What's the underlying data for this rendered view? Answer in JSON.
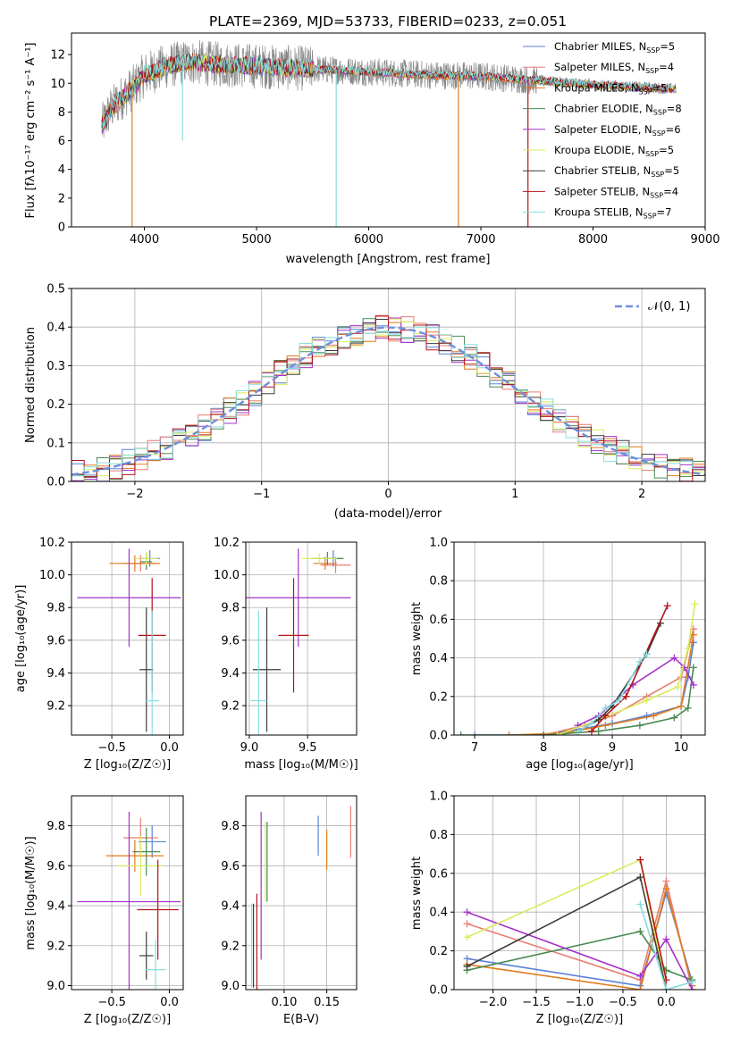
{
  "title": "PLATE=2369, MJD=53733, FIBERID=0233, z=0.051",
  "colors": {
    "chabrier_miles": "#5b82d6",
    "salpeter_miles": "#e87d72",
    "kroupa_miles": "#e07b1d",
    "chabrier_elodie": "#4a8a55",
    "salpeter_elodie": "#a532c8",
    "kroupa_elodie": "#d9ee5a",
    "chabrier_stelib": "#3c3c3c",
    "salpeter_stelib": "#b3151b",
    "kroupa_stelib": "#86dede",
    "data": "#888888"
  },
  "chart_data": [
    {
      "type": "line",
      "panel": "spectrum",
      "title": "PLATE=2369, MJD=53733, FIBERID=0233, z=0.051",
      "xlabel": "wavelength [Angstrom, rest frame]",
      "ylabel": "Flux [fλ10⁻¹⁷ erg cm⁻² s⁻¹ A⁻¹]",
      "xlim": [
        3350,
        9000
      ],
      "ylim": [
        0,
        13.5
      ],
      "xticks": [
        "4000",
        "5000",
        "6000",
        "7000",
        "8000",
        "9000"
      ],
      "yticks": [
        "0",
        "2",
        "4",
        "6",
        "8",
        "10",
        "12"
      ],
      "legend_position": "right",
      "legend": [
        {
          "label": "Chabrier MILES, N",
          "sub": "SSP",
          "val": "=5"
        },
        {
          "label": "Salpeter MILES, N",
          "sub": "SSP",
          "val": "=4"
        },
        {
          "label": "Kroupa MILES, N",
          "sub": "SSP",
          "val": "=5"
        },
        {
          "label": "Chabrier ELODIE, N",
          "sub": "SSP",
          "val": "=8"
        },
        {
          "label": "Salpeter ELODIE, N",
          "sub": "SSP",
          "val": "=6"
        },
        {
          "label": "Kroupa ELODIE, N",
          "sub": "SSP",
          "val": "=5"
        },
        {
          "label": "Chabrier STELIB, N",
          "sub": "SSP",
          "val": "=5"
        },
        {
          "label": "Salpeter STELIB, N",
          "sub": "SSP",
          "val": "=4"
        },
        {
          "label": "Kroupa STELIB, N",
          "sub": "SSP",
          "val": "=7"
        }
      ],
      "data_range": [
        3620,
        8740
      ],
      "continuum": [
        [
          3620,
          7.0
        ],
        [
          3700,
          8.2
        ],
        [
          3800,
          9.0
        ],
        [
          3900,
          9.7
        ],
        [
          4000,
          10.6
        ],
        [
          4200,
          11.2
        ],
        [
          4400,
          11.5
        ],
        [
          4700,
          11.3
        ],
        [
          5000,
          11.2
        ],
        [
          5500,
          11.0
        ],
        [
          6000,
          10.8
        ],
        [
          6500,
          10.6
        ],
        [
          7000,
          10.5
        ],
        [
          7500,
          10.2
        ],
        [
          8000,
          9.9
        ],
        [
          8500,
          9.7
        ],
        [
          8740,
          9.6
        ]
      ],
      "spikes_down": [
        [
          3890,
          0
        ],
        [
          4340,
          6.0
        ],
        [
          5710,
          0
        ],
        [
          6800,
          0
        ],
        [
          7420,
          0
        ]
      ]
    },
    {
      "type": "histogram",
      "panel": "residuals",
      "xlabel": "(data-model)/error",
      "ylabel": "Normed distribution",
      "xlim": [
        -2.5,
        2.5
      ],
      "ylim": [
        0,
        0.5
      ],
      "xticks": [
        "−2",
        "−1",
        "0",
        "1",
        "2"
      ],
      "yticks": [
        "0.0",
        "0.1",
        "0.2",
        "0.3",
        "0.4",
        "0.5"
      ],
      "legend": "𝒩(0, 1)",
      "legend_position": "top-right",
      "bin_width": 0.1
    },
    {
      "type": "scatter",
      "panel": "age_vs_Z",
      "xlabel": "Z [log₁₀(Z/Z☉)]",
      "ylabel": "age  [log₁₀(age/yr)]",
      "xlim": [
        -0.85,
        0.12
      ],
      "ylim": [
        9.02,
        10.2
      ],
      "xticks": [
        "−0.5",
        "0.0"
      ],
      "yticks": [
        "9.2",
        "9.4",
        "9.6",
        "9.8",
        "10.0",
        "10.2"
      ],
      "points": [
        {
          "model": "chabrier_miles",
          "x": -0.17,
          "y": 10.1,
          "xerr": 0.09,
          "yerr": 0.05
        },
        {
          "model": "salpeter_miles",
          "x": -0.25,
          "y": 10.07,
          "xerr": 0.15,
          "yerr": 0.05
        },
        {
          "model": "kroupa_miles",
          "x": -0.3,
          "y": 10.07,
          "xerr": 0.22,
          "yerr": 0.05
        },
        {
          "model": "chabrier_elodie",
          "x": -0.2,
          "y": 10.08,
          "xerr": 0.05,
          "yerr": 0.05
        },
        {
          "model": "salpeter_elodie",
          "x": -0.35,
          "y": 9.86,
          "xerr": 0.45,
          "yerr": 0.3
        },
        {
          "model": "kroupa_elodie",
          "x": -0.2,
          "y": 10.1,
          "xerr": 0.1,
          "yerr": 0.04
        },
        {
          "model": "chabrier_stelib",
          "x": -0.2,
          "y": 9.42,
          "xerr": 0.06,
          "yerr": 0.38
        },
        {
          "model": "salpeter_stelib",
          "x": -0.15,
          "y": 9.63,
          "xerr": 0.12,
          "yerr": 0.35
        },
        {
          "model": "kroupa_stelib",
          "x": -0.15,
          "y": 9.23,
          "xerr": 0.06,
          "yerr": 0.55
        }
      ]
    },
    {
      "type": "scatter",
      "panel": "age_vs_mass",
      "xlabel": "mass [log₁₀(M/M☉)]",
      "yticks": [
        "9.2",
        "9.4",
        "9.6",
        "9.8",
        "10.0",
        "10.2"
      ],
      "xticks": [
        "9.0",
        "9.5"
      ],
      "xlim": [
        8.97,
        9.92
      ],
      "ylim": [
        9.02,
        10.2
      ],
      "points": [
        {
          "model": "chabrier_miles",
          "x": 9.72,
          "y": 10.1,
          "xerr": 0.08,
          "yerr": 0.05
        },
        {
          "model": "salpeter_miles",
          "x": 9.74,
          "y": 10.06,
          "xerr": 0.13,
          "yerr": 0.05
        },
        {
          "model": "kroupa_miles",
          "x": 9.65,
          "y": 10.07,
          "xerr": 0.1,
          "yerr": 0.04
        },
        {
          "model": "chabrier_elodie",
          "x": 9.67,
          "y": 10.1,
          "xerr": 0.14,
          "yerr": 0.04
        },
        {
          "model": "salpeter_elodie",
          "x": 9.42,
          "y": 9.86,
          "xerr": 0.45,
          "yerr": 0.3
        },
        {
          "model": "kroupa_elodie",
          "x": 9.6,
          "y": 10.1,
          "xerr": 0.15,
          "yerr": 0.03
        },
        {
          "model": "chabrier_stelib",
          "x": 9.15,
          "y": 9.42,
          "xerr": 0.12,
          "yerr": 0.38
        },
        {
          "model": "salpeter_stelib",
          "x": 9.38,
          "y": 9.63,
          "xerr": 0.13,
          "yerr": 0.35
        },
        {
          "model": "kroupa_stelib",
          "x": 9.08,
          "y": 9.23,
          "xerr": 0.07,
          "yerr": 0.55
        }
      ]
    },
    {
      "type": "line",
      "panel": "massweight_vs_age",
      "xlabel": "age  [log₁₀(age/yr)]",
      "ylabel": "mass weight",
      "xlim": [
        6.7,
        10.35
      ],
      "ylim": [
        0,
        1.0
      ],
      "xticks": [
        "7",
        "8",
        "9",
        "10"
      ],
      "yticks": [
        "0.0",
        "0.2",
        "0.4",
        "0.6",
        "0.8",
        "1.0"
      ],
      "series": [
        {
          "model": "chabrier_miles",
          "points": [
            [
              7.0,
              0.0
            ],
            [
              8.0,
              0.0
            ],
            [
              8.5,
              0.03
            ],
            [
              9.0,
              0.06
            ],
            [
              9.5,
              0.1
            ],
            [
              10.0,
              0.15
            ],
            [
              10.1,
              0.3
            ],
            [
              10.18,
              0.48
            ]
          ]
        },
        {
          "model": "salpeter_miles",
          "points": [
            [
              8.0,
              0.0
            ],
            [
              8.6,
              0.05
            ],
            [
              9.0,
              0.1
            ],
            [
              9.5,
              0.2
            ],
            [
              10.0,
              0.3
            ],
            [
              10.18,
              0.55
            ]
          ]
        },
        {
          "model": "kroupa_miles",
          "points": [
            [
              7.5,
              0.0
            ],
            [
              8.3,
              0.01
            ],
            [
              8.9,
              0.05
            ],
            [
              9.6,
              0.1
            ],
            [
              10.0,
              0.15
            ],
            [
              10.18,
              0.52
            ]
          ]
        },
        {
          "model": "chabrier_elodie",
          "points": [
            [
              6.8,
              0.0
            ],
            [
              8.0,
              0.0
            ],
            [
              8.8,
              0.02
            ],
            [
              9.4,
              0.05
            ],
            [
              9.9,
              0.09
            ],
            [
              10.1,
              0.14
            ],
            [
              10.18,
              0.35
            ]
          ]
        },
        {
          "model": "salpeter_elodie",
          "points": [
            [
              8.5,
              0.05
            ],
            [
              8.8,
              0.1
            ],
            [
              9.3,
              0.26
            ],
            [
              9.9,
              0.4
            ],
            [
              10.05,
              0.35
            ],
            [
              10.18,
              0.26
            ]
          ]
        },
        {
          "model": "kroupa_elodie",
          "points": [
            [
              8.2,
              0.0
            ],
            [
              8.8,
              0.08
            ],
            [
              9.5,
              0.18
            ],
            [
              9.95,
              0.25
            ],
            [
              10.1,
              0.45
            ],
            [
              10.2,
              0.68
            ]
          ]
        },
        {
          "model": "chabrier_stelib",
          "points": [
            [
              8.5,
              0.02
            ],
            [
              8.8,
              0.08
            ],
            [
              9.0,
              0.15
            ],
            [
              9.5,
              0.42
            ],
            [
              9.7,
              0.58
            ]
          ]
        },
        {
          "model": "salpeter_stelib",
          "points": [
            [
              8.7,
              0.02
            ],
            [
              8.9,
              0.1
            ],
            [
              9.2,
              0.2
            ],
            [
              9.8,
              0.67
            ]
          ]
        },
        {
          "model": "kroupa_stelib",
          "points": [
            [
              8.5,
              0.02
            ],
            [
              8.7,
              0.06
            ],
            [
              8.9,
              0.14
            ],
            [
              9.1,
              0.18
            ],
            [
              9.4,
              0.38
            ],
            [
              9.5,
              0.42
            ]
          ]
        }
      ]
    },
    {
      "type": "scatter",
      "panel": "mass_vs_Z",
      "xlabel": "Z [log₁₀(Z/Z☉)]",
      "ylabel": "mass [log₁₀(M/M☉)]",
      "xlim": [
        -0.85,
        0.12
      ],
      "ylim": [
        8.98,
        9.95
      ],
      "xticks": [
        "−0.5",
        "0.0"
      ],
      "yticks": [
        "9.0",
        "9.2",
        "9.4",
        "9.6",
        "9.8"
      ],
      "points": [
        {
          "model": "chabrier_miles",
          "x": -0.15,
          "y": 9.72,
          "xerr": 0.12,
          "yerr": 0.08
        },
        {
          "model": "salpeter_miles",
          "x": -0.25,
          "y": 9.74,
          "xerr": 0.15,
          "yerr": 0.1
        },
        {
          "model": "kroupa_miles",
          "x": -0.3,
          "y": 9.65,
          "xerr": 0.25,
          "yerr": 0.08
        },
        {
          "model": "chabrier_elodie",
          "x": -0.2,
          "y": 9.67,
          "xerr": 0.12,
          "yerr": 0.12
        },
        {
          "model": "salpeter_elodie",
          "x": -0.35,
          "y": 9.42,
          "xerr": 0.45,
          "yerr": 0.45
        },
        {
          "model": "kroupa_elodie",
          "x": -0.25,
          "y": 9.6,
          "xerr": 0.2,
          "yerr": 0.15
        },
        {
          "model": "chabrier_stelib",
          "x": -0.2,
          "y": 9.15,
          "xerr": 0.06,
          "yerr": 0.12
        },
        {
          "model": "salpeter_stelib",
          "x": -0.1,
          "y": 9.38,
          "xerr": 0.18,
          "yerr": 0.25
        },
        {
          "model": "kroupa_stelib",
          "x": -0.12,
          "y": 9.08,
          "xerr": 0.09,
          "yerr": 0.15
        }
      ]
    },
    {
      "type": "scatter",
      "panel": "mass_vs_EBV",
      "xlabel": "E(B-V)",
      "xlim": [
        0.055,
        0.185
      ],
      "ylim": [
        8.98,
        9.95
      ],
      "xticks": [
        "0.10",
        "0.15"
      ],
      "yticks": [
        "9.0",
        "9.2",
        "9.4",
        "9.6",
        "9.8"
      ],
      "points": [
        {
          "model": "chabrier_miles",
          "x": 0.14,
          "y": 9.75,
          "yerr": 0.1
        },
        {
          "model": "salpeter_miles",
          "x": 0.178,
          "y": 9.77,
          "yerr": 0.13
        },
        {
          "model": "kroupa_miles",
          "x": 0.15,
          "y": 9.68,
          "yerr": 0.1
        },
        {
          "model": "chabrier_elodie",
          "x": 0.08,
          "y": 9.62,
          "yerr": 0.2
        },
        {
          "model": "salpeter_elodie",
          "x": 0.073,
          "y": 9.5,
          "yerr": 0.37
        },
        {
          "model": "kroupa_elodie",
          "x": 0.078,
          "y": 9.62,
          "yerr": 0.2
        },
        {
          "model": "chabrier_stelib",
          "x": 0.064,
          "y": 9.2,
          "yerr": 0.21
        },
        {
          "model": "salpeter_stelib",
          "x": 0.068,
          "y": 9.2,
          "yerr": 0.26
        },
        {
          "model": "kroupa_stelib",
          "x": 0.062,
          "y": 9.2,
          "yerr": 0.21
        }
      ]
    },
    {
      "type": "line",
      "panel": "massweight_vs_Z",
      "xlabel": "Z [log₁₀(Z/Z☉)]",
      "ylabel": "mass weight",
      "xlim": [
        -2.45,
        0.45
      ],
      "ylim": [
        0,
        1.0
      ],
      "xticks": [
        "−2.0",
        "−1.5",
        "−1.0",
        "−0.5",
        "0.0"
      ],
      "yticks": [
        "0.0",
        "0.2",
        "0.4",
        "0.6",
        "0.8",
        "1.0"
      ],
      "series": [
        {
          "model": "chabrier_miles",
          "points": [
            [
              -2.3,
              0.16
            ],
            [
              -0.3,
              0.02
            ],
            [
              0.0,
              0.5
            ],
            [
              0.3,
              0.04
            ]
          ]
        },
        {
          "model": "salpeter_miles",
          "points": [
            [
              -2.3,
              0.34
            ],
            [
              -0.3,
              0.05
            ],
            [
              0.0,
              0.56
            ],
            [
              0.3,
              0.0
            ]
          ]
        },
        {
          "model": "kroupa_miles",
          "points": [
            [
              -2.3,
              0.13
            ],
            [
              -0.3,
              0.0
            ],
            [
              0.0,
              0.52
            ],
            [
              0.3,
              0.02
            ]
          ]
        },
        {
          "model": "chabrier_elodie",
          "points": [
            [
              -2.3,
              0.1
            ],
            [
              -0.3,
              0.3
            ],
            [
              0.0,
              0.1
            ],
            [
              0.3,
              0.05
            ]
          ]
        },
        {
          "model": "salpeter_elodie",
          "points": [
            [
              -2.3,
              0.4
            ],
            [
              -0.3,
              0.07
            ],
            [
              0.0,
              0.26
            ],
            [
              0.3,
              0.0
            ]
          ]
        },
        {
          "model": "kroupa_elodie",
          "points": [
            [
              -2.3,
              0.27
            ],
            [
              -0.3,
              0.67
            ],
            [
              0.0,
              0.0
            ]
          ]
        },
        {
          "model": "chabrier_stelib",
          "points": [
            [
              -2.3,
              0.12
            ],
            [
              -0.3,
              0.58
            ],
            [
              0.0,
              0.0
            ]
          ]
        },
        {
          "model": "salpeter_stelib",
          "points": [
            [
              -0.3,
              0.67
            ],
            [
              0.0,
              0.05
            ]
          ]
        },
        {
          "model": "kroupa_stelib",
          "points": [
            [
              -0.3,
              0.44
            ],
            [
              0.0,
              0.0
            ],
            [
              0.3,
              0.04
            ]
          ]
        }
      ]
    }
  ]
}
